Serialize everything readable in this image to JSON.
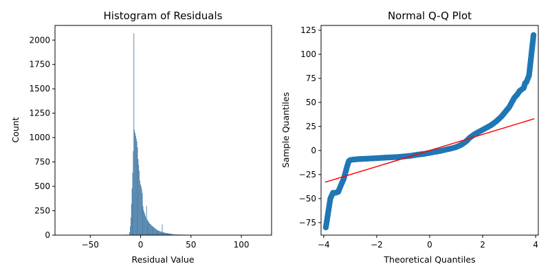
{
  "chart_data": [
    {
      "type": "bar",
      "title": "Histogram of Residuals",
      "xlabel": "Residual Value",
      "ylabel": "Count",
      "xlim": [
        -85,
        130
      ],
      "ylim": [
        0,
        2150
      ],
      "xticks": [
        -50,
        0,
        50,
        100
      ],
      "yticks": [
        0,
        250,
        500,
        750,
        1000,
        1250,
        1500,
        1750,
        2000
      ],
      "bar_color": "#4a7ea8",
      "bin_width": 0.6,
      "bins": [
        [
          -80.2,
          2
        ],
        [
          -62,
          1
        ],
        [
          -50,
          1
        ],
        [
          -45,
          2
        ],
        [
          -38,
          1
        ],
        [
          -31,
          2
        ],
        [
          -25,
          3
        ],
        [
          -20,
          4
        ],
        [
          -16,
          6
        ],
        [
          -13,
          8
        ],
        [
          -11.2,
          30
        ],
        [
          -10.6,
          90
        ],
        [
          -10.0,
          180
        ],
        [
          -9.4,
          320
        ],
        [
          -8.8,
          480
        ],
        [
          -8.2,
          640
        ],
        [
          -7.6,
          860
        ],
        [
          -7.0,
          2070
        ],
        [
          -6.4,
          1080
        ],
        [
          -5.8,
          1050
        ],
        [
          -5.2,
          1020
        ],
        [
          -4.6,
          990
        ],
        [
          -4.0,
          960
        ],
        [
          -3.4,
          900
        ],
        [
          -2.8,
          780
        ],
        [
          -2.2,
          720
        ],
        [
          -1.6,
          660
        ],
        [
          -1.0,
          560
        ],
        [
          -0.4,
          520
        ],
        [
          0.2,
          500
        ],
        [
          0.8,
          470
        ],
        [
          1.4,
          430
        ],
        [
          2.0,
          300
        ],
        [
          2.6,
          260
        ],
        [
          3.2,
          240
        ],
        [
          3.8,
          220
        ],
        [
          4.4,
          200
        ],
        [
          5.0,
          180
        ],
        [
          5.6,
          300
        ],
        [
          6.2,
          160
        ],
        [
          6.8,
          150
        ],
        [
          7.4,
          140
        ],
        [
          8.0,
          130
        ],
        [
          8.6,
          120
        ],
        [
          9.2,
          115
        ],
        [
          9.8,
          110
        ],
        [
          10.4,
          100
        ],
        [
          11.0,
          95
        ],
        [
          11.6,
          90
        ],
        [
          12.2,
          85
        ],
        [
          12.8,
          80
        ],
        [
          13.4,
          75
        ],
        [
          14.0,
          70
        ],
        [
          14.6,
          65
        ],
        [
          15.2,
          60
        ],
        [
          15.8,
          55
        ],
        [
          16.4,
          50
        ],
        [
          17.0,
          48
        ],
        [
          17.6,
          45
        ],
        [
          18.2,
          42
        ],
        [
          18.8,
          40
        ],
        [
          19.4,
          38
        ],
        [
          20.0,
          35
        ],
        [
          20.6,
          32
        ],
        [
          21.2,
          110
        ],
        [
          21.8,
          30
        ],
        [
          22.4,
          28
        ],
        [
          23.0,
          27
        ],
        [
          23.6,
          25
        ],
        [
          24.2,
          24
        ],
        [
          24.8,
          22
        ],
        [
          25.4,
          21
        ],
        [
          26.0,
          20
        ],
        [
          26.6,
          19
        ],
        [
          27.2,
          18
        ],
        [
          27.8,
          17
        ],
        [
          28.4,
          16
        ],
        [
          29.0,
          15
        ],
        [
          29.6,
          14
        ],
        [
          30.2,
          13
        ],
        [
          31.0,
          12
        ],
        [
          32.0,
          11
        ],
        [
          33.0,
          10
        ],
        [
          34.0,
          9
        ],
        [
          35.0,
          8
        ],
        [
          36.0,
          7
        ],
        [
          37.0,
          7
        ],
        [
          38.0,
          6
        ],
        [
          39.0,
          6
        ],
        [
          40.0,
          5
        ],
        [
          41.0,
          5
        ],
        [
          42.0,
          4
        ],
        [
          43.0,
          4
        ],
        [
          44.0,
          4
        ],
        [
          45.0,
          3
        ],
        [
          46.0,
          3
        ],
        [
          47.0,
          3
        ],
        [
          48.0,
          2
        ],
        [
          50.0,
          2
        ],
        [
          52.0,
          2
        ],
        [
          54.0,
          2
        ],
        [
          56.0,
          1
        ],
        [
          58.0,
          1
        ],
        [
          60.0,
          1
        ],
        [
          62.0,
          1
        ],
        [
          64.0,
          1
        ],
        [
          70.0,
          1
        ],
        [
          71.0,
          1
        ],
        [
          78.0,
          1
        ],
        [
          120.0,
          1
        ]
      ]
    },
    {
      "type": "scatter",
      "title": "Normal Q-Q Plot",
      "xlabel": "Theoretical Quantiles",
      "ylabel": "Sample Quantiles",
      "xlim": [
        -4.1,
        4.1
      ],
      "ylim": [
        -88,
        130
      ],
      "xticks": [
        -4,
        -2,
        0,
        2,
        4
      ],
      "yticks": [
        -75,
        -50,
        -25,
        0,
        25,
        50,
        75,
        100,
        125
      ],
      "marker_color": "#1f77b4",
      "line_color": "#ff0000",
      "fit_line": {
        "x": [
          -3.95,
          3.95
        ],
        "y": [
          -33,
          33
        ]
      },
      "points": [
        [
          -3.92,
          -80
        ],
        [
          -3.75,
          -50
        ],
        [
          -3.65,
          -44
        ],
        [
          -3.55,
          -44
        ],
        [
          -3.45,
          -43
        ],
        [
          -3.38,
          -38
        ],
        [
          -3.3,
          -33
        ],
        [
          -3.25,
          -30
        ],
        [
          -3.2,
          -25
        ],
        [
          -3.15,
          -20
        ],
        [
          -3.1,
          -15
        ],
        [
          -3.05,
          -11
        ],
        [
          -3.0,
          -10
        ],
        [
          -2.9,
          -9.5
        ],
        [
          -2.7,
          -9
        ],
        [
          -2.5,
          -8.7
        ],
        [
          -2.2,
          -8.3
        ],
        [
          -2.0,
          -8
        ],
        [
          -1.7,
          -7.5
        ],
        [
          -1.5,
          -7.2
        ],
        [
          -1.2,
          -6.8
        ],
        [
          -1.0,
          -6.3
        ],
        [
          -0.7,
          -5.5
        ],
        [
          -0.5,
          -4.5
        ],
        [
          -0.2,
          -3.5
        ],
        [
          0.0,
          -2.5
        ],
        [
          0.2,
          -1.5
        ],
        [
          0.4,
          -0.5
        ],
        [
          0.6,
          0.8
        ],
        [
          0.8,
          2
        ],
        [
          1.0,
          3.5
        ],
        [
          1.2,
          6
        ],
        [
          1.4,
          10
        ],
        [
          1.5,
          13
        ],
        [
          1.7,
          17
        ],
        [
          1.9,
          20
        ],
        [
          2.1,
          23
        ],
        [
          2.3,
          26
        ],
        [
          2.5,
          30
        ],
        [
          2.7,
          35
        ],
        [
          2.85,
          40
        ],
        [
          3.0,
          45
        ],
        [
          3.1,
          50
        ],
        [
          3.2,
          55
        ],
        [
          3.3,
          58
        ],
        [
          3.4,
          62
        ],
        [
          3.5,
          64
        ],
        [
          3.55,
          65
        ],
        [
          3.6,
          70
        ],
        [
          3.65,
          71
        ],
        [
          3.75,
          78
        ],
        [
          3.92,
          120
        ]
      ]
    }
  ]
}
